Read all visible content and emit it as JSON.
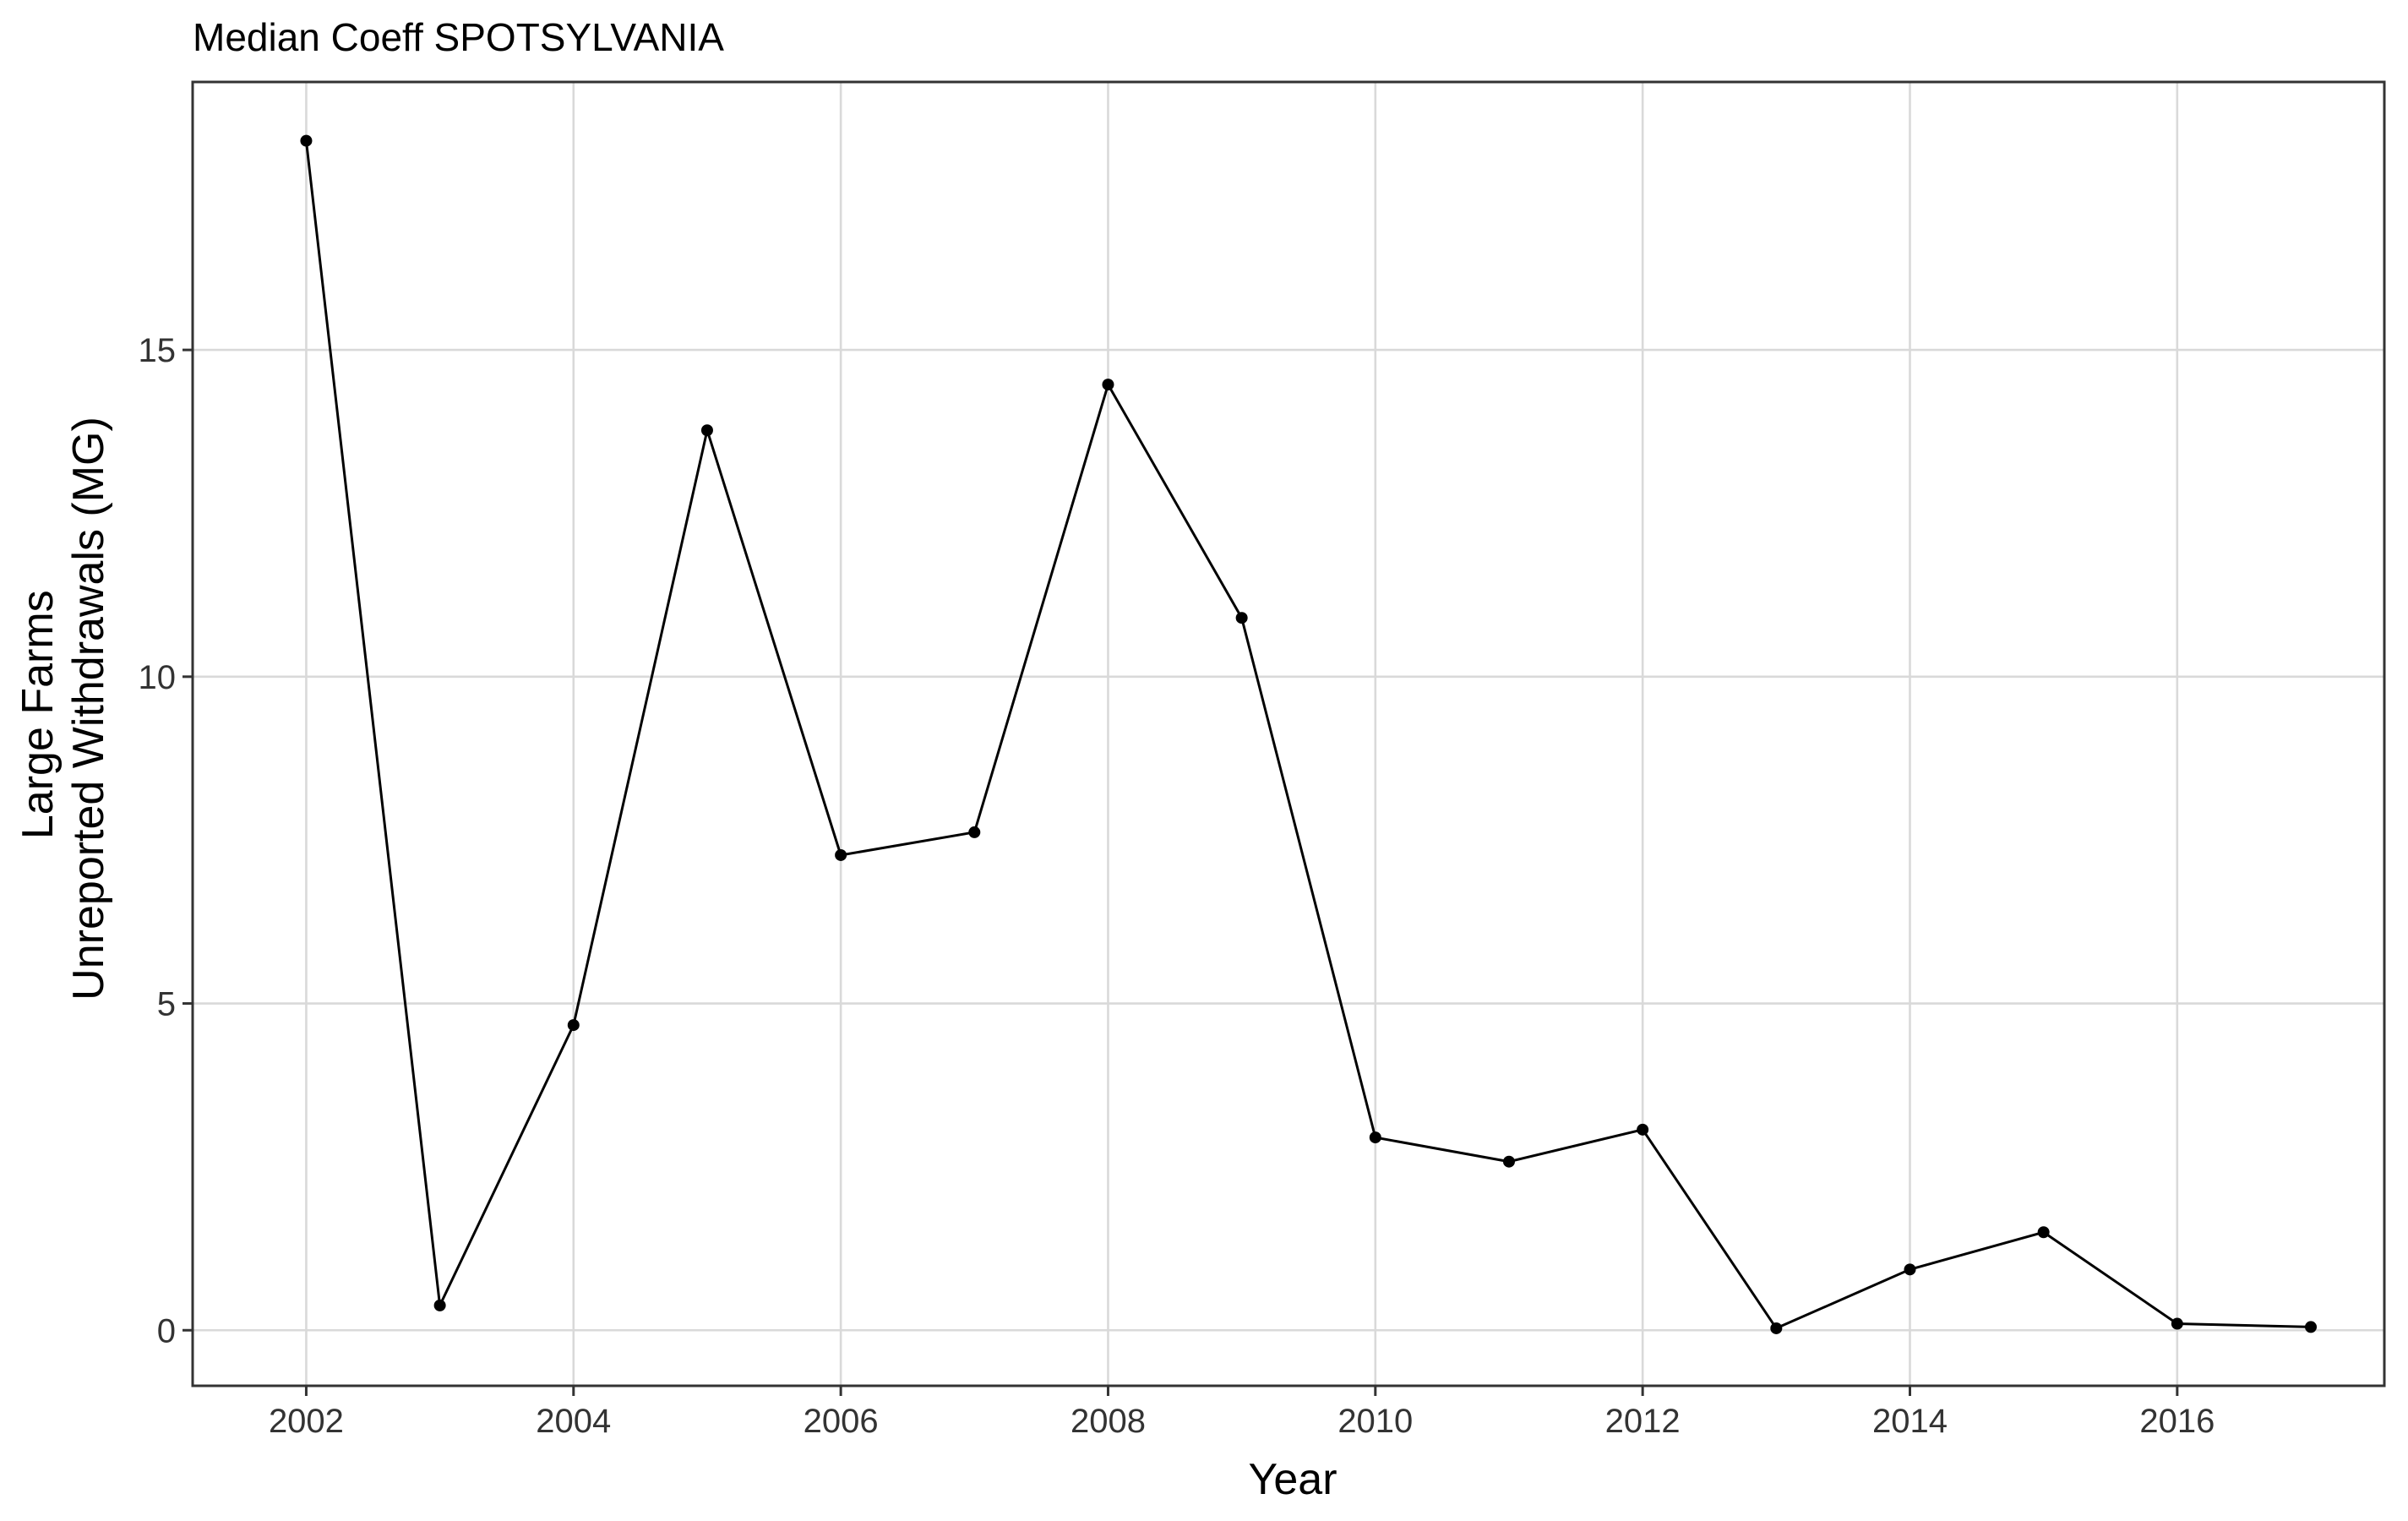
{
  "chart_data": {
    "type": "line",
    "title": "Median Coeff SPOTSYLVANIA",
    "xlabel": "Year",
    "ylabel_lines": [
      "Large Farms",
      "Unreported Withdrawals (MG)"
    ],
    "x_ticks": [
      2002,
      2004,
      2006,
      2008,
      2010,
      2012,
      2014,
      2016
    ],
    "y_ticks": [
      0,
      5,
      10,
      15
    ],
    "xlim": [
      2001.15,
      2017.55
    ],
    "ylim": [
      -0.85,
      19.1
    ],
    "grid": true,
    "legend": "none",
    "line_color": "#000000",
    "x": [
      2002.0,
      2003.0,
      2004.0,
      2005.0,
      2006.0,
      2007.0,
      2008.0,
      2009.0,
      2010.0,
      2011.0,
      2012.0,
      2013.0,
      2014.0,
      2015.0,
      2016.0,
      2017.0
    ],
    "values": [
      18.2,
      0.38,
      4.67,
      13.77,
      7.27,
      7.62,
      14.47,
      10.9,
      2.95,
      2.58,
      3.07,
      0.03,
      0.93,
      1.5,
      0.1,
      0.05
    ]
  }
}
